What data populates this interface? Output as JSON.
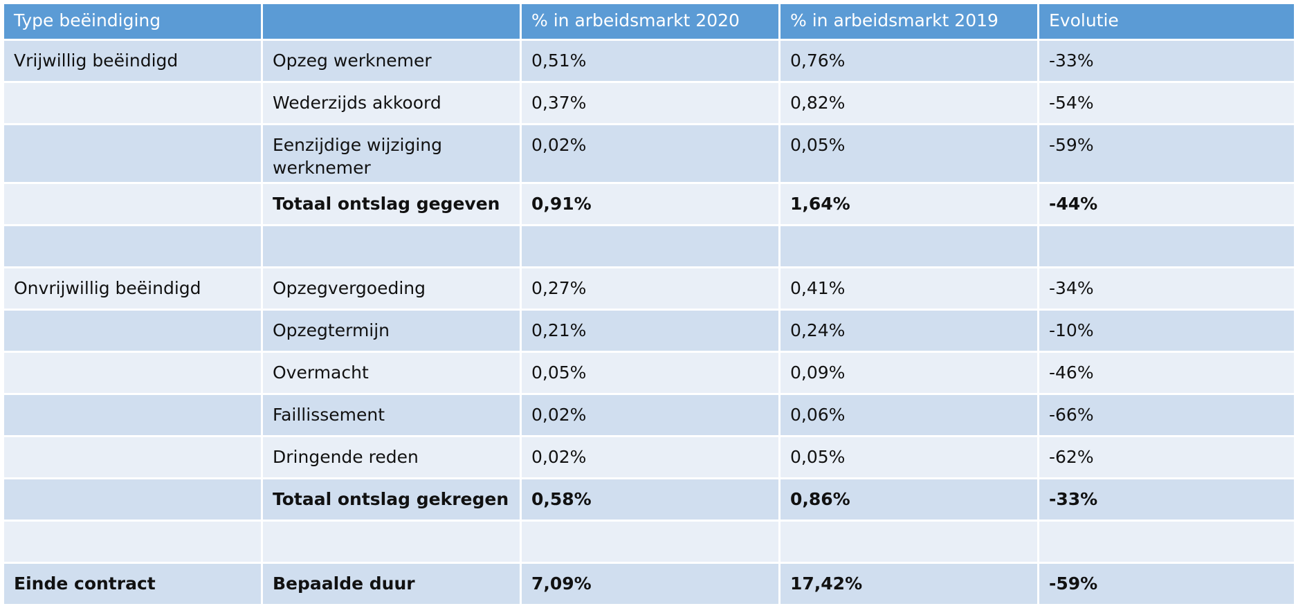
{
  "header": {
    "col1": "Type beëindiging",
    "col2": "",
    "col3": "% in arbeidsmarkt 2020",
    "col4": "% in arbeidsmarkt 2019",
    "col5": "Evolutie"
  },
  "rows": [
    {
      "type": "Vrijwillig beëindigd",
      "sub": "Opzeg werknemer",
      "y2020": "0,51%",
      "y2019": "0,76%",
      "evo": "-33%"
    },
    {
      "type": "",
      "sub": "Wederzijds akkoord",
      "y2020": "0,37%",
      "y2019": "0,82%",
      "evo": "-54%"
    },
    {
      "type": "",
      "sub": "Eenzijdige wijziging werknemer",
      "y2020": "0,02%",
      "y2019": "0,05%",
      "evo": "-59%"
    },
    {
      "type": "",
      "sub": "Totaal ontslag gegeven",
      "y2020": "0,91%",
      "y2019": "1,64%",
      "evo": "-44%"
    },
    {
      "type": "",
      "sub": "",
      "y2020": "",
      "y2019": "",
      "evo": ""
    },
    {
      "type": "Onvrijwillig beëindigd",
      "sub": "Opzegvergoeding",
      "y2020": "0,27%",
      "y2019": "0,41%",
      "evo": "-34%"
    },
    {
      "type": "",
      "sub": "Opzegtermijn",
      "y2020": "0,21%",
      "y2019": "0,24%",
      "evo": "-10%"
    },
    {
      "type": "",
      "sub": "Overmacht",
      "y2020": "0,05%",
      "y2019": "0,09%",
      "evo": "-46%"
    },
    {
      "type": "",
      "sub": "Faillissement",
      "y2020": "0,02%",
      "y2019": "0,06%",
      "evo": "-66%"
    },
    {
      "type": "",
      "sub": "Dringende reden",
      "y2020": "0,02%",
      "y2019": "0,05%",
      "evo": "-62%"
    },
    {
      "type": "",
      "sub": "Totaal ontslag gekregen",
      "y2020": "0,58%",
      "y2019": "0,86%",
      "evo": "-33%"
    },
    {
      "type": "",
      "sub": "",
      "y2020": "",
      "y2019": "",
      "evo": ""
    },
    {
      "type": "Einde contract",
      "sub": "Bepaalde duur",
      "y2020": "7,09%",
      "y2019": "17,42%",
      "evo": "-59%"
    }
  ],
  "colors": {
    "header_bg": "#5b9bd5",
    "row_odd": "#d0deef",
    "row_even": "#e9eff7"
  }
}
